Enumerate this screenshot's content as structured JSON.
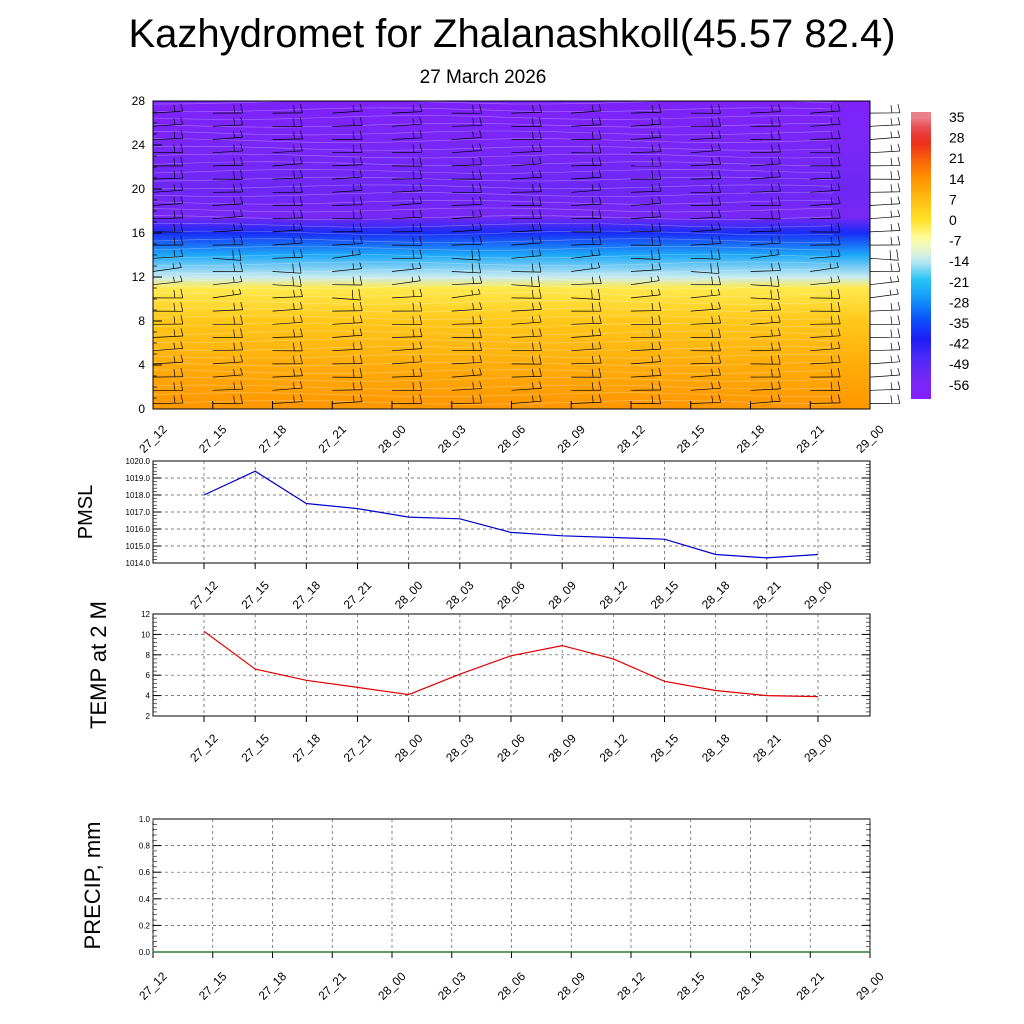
{
  "title": "Kazhydromet for Zhalanashkoll(45.57 82.4)",
  "subtitle": "27 March 2026",
  "colors": {
    "pmsl_line": "#0000cc",
    "temp_line": "#e00000",
    "precip_line": "#006600",
    "barb": "#000000"
  },
  "chart_data": [
    {
      "type": "heatmap",
      "name": "cross-section",
      "x": [
        "27_12",
        "27_15",
        "27_18",
        "27_21",
        "28_00",
        "28_03",
        "28_06",
        "28_09",
        "28_12",
        "28_15",
        "28_18",
        "28_21",
        "29_00"
      ],
      "y_ticks": [
        0,
        4,
        8,
        12,
        16,
        20,
        24,
        28
      ],
      "ylim": [
        0,
        28
      ],
      "colorbar": {
        "labels": [
          "35",
          "28",
          "21",
          "14",
          "7",
          "0",
          "-7",
          "-14",
          "-21",
          "-28",
          "-35",
          "-42",
          "-49",
          "-56"
        ],
        "range": [
          -63,
          38
        ]
      },
      "temperature_profile": {
        "y": [
          0,
          4,
          8,
          11,
          12,
          14,
          16,
          17.5,
          20,
          24,
          28
        ],
        "values": [
          14,
          10,
          5,
          -2,
          -14,
          -25,
          -40,
          -56,
          -54,
          -57,
          -60
        ]
      },
      "grid": false
    },
    {
      "type": "line",
      "name": "pmsl",
      "ylabel": "PMSL",
      "x": [
        "27_12",
        "27_15",
        "27_18",
        "27_21",
        "28_00",
        "28_03",
        "28_06",
        "28_09",
        "28_12",
        "28_15",
        "28_18",
        "28_21",
        "29_00"
      ],
      "values": [
        1018.0,
        1019.4,
        1017.5,
        1017.2,
        1016.7,
        1016.6,
        1015.8,
        1015.6,
        1015.5,
        1015.4,
        1014.5,
        1014.3,
        1014.5
      ],
      "y_ticks": [
        "1020.0",
        "1019.0",
        "1018.0",
        "1017.0",
        "1016.0",
        "1015.0",
        "1014.0"
      ],
      "ylim": [
        1014.0,
        1020.0
      ],
      "grid": true
    },
    {
      "type": "line",
      "name": "temp",
      "ylabel": "TEMP at 2 M",
      "x": [
        "27_12",
        "27_15",
        "27_18",
        "27_21",
        "28_00",
        "28_03",
        "28_06",
        "28_09",
        "28_12",
        "28_15",
        "28_18",
        "28_21",
        "29_00"
      ],
      "values": [
        10.3,
        6.6,
        5.5,
        4.8,
        4.1,
        6.1,
        7.9,
        8.9,
        7.6,
        5.4,
        4.5,
        4.0,
        3.9
      ],
      "y_ticks": [
        "12",
        "10",
        "8",
        "6",
        "4",
        "2"
      ],
      "ylim": [
        2,
        12
      ],
      "grid": true
    },
    {
      "type": "line",
      "name": "precip",
      "ylabel": "PRECIP, mm",
      "x": [
        "27_12",
        "27_15",
        "27_18",
        "27_21",
        "28_00",
        "28_03",
        "28_06",
        "28_09",
        "28_12",
        "28_15",
        "28_18",
        "28_21",
        "29_00"
      ],
      "values": [
        0,
        0,
        0,
        0,
        0,
        0,
        0,
        0,
        0,
        0,
        0,
        0,
        0
      ],
      "y_ticks": [
        "1.0",
        "0.8",
        "0.6",
        "0.4",
        "0.2",
        "0.0"
      ],
      "ylim": [
        0,
        1
      ],
      "grid": true
    }
  ]
}
